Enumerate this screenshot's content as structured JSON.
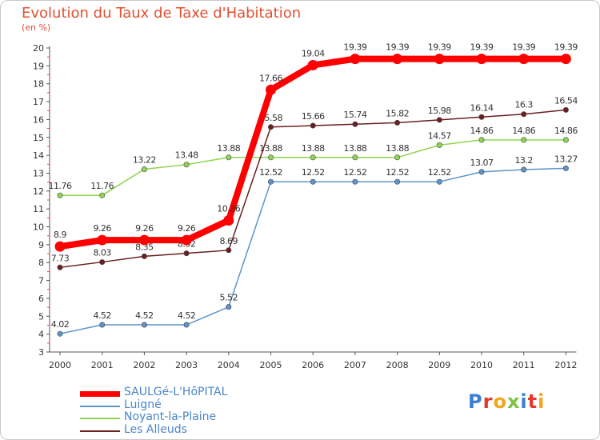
{
  "chart_data": {
    "type": "line",
    "title": "Evolution du Taux de Taxe d'Habitation",
    "ylabel": "(en %)",
    "xlabel": "",
    "x": [
      "2000",
      "2001",
      "2002",
      "2003",
      "2004",
      "2005",
      "2006",
      "2007",
      "2008",
      "2009",
      "2010",
      "2011",
      "2012"
    ],
    "ylim": [
      3,
      20
    ],
    "yticks": [
      3,
      4,
      5,
      6,
      7,
      8,
      9,
      10,
      11,
      12,
      13,
      14,
      15,
      16,
      17,
      18,
      19,
      20
    ],
    "grid": false,
    "legend_position": "bottom-left",
    "series": [
      {
        "name": "SAULGé-L'HôPITAL",
        "color": "#ff0000",
        "values": [
          8.9,
          9.26,
          9.26,
          9.26,
          10.36,
          17.66,
          19.04,
          19.39,
          19.39,
          19.39,
          19.39,
          19.39,
          19.39
        ],
        "labels": [
          "8.9",
          "9.26",
          "9.26",
          "9.26",
          "10.36",
          "17.66",
          "19.04",
          "19.39",
          "19.39",
          "19.39",
          "19.39",
          "19.39",
          "19.39"
        ]
      },
      {
        "name": "Luigné",
        "color": "#5d94c9",
        "values": [
          4.02,
          4.52,
          4.52,
          4.52,
          5.52,
          12.52,
          12.52,
          12.52,
          12.52,
          12.52,
          13.07,
          13.2,
          13.27
        ],
        "labels": [
          "4.02",
          "4.52",
          "4.52",
          "4.52",
          "5.52",
          "12.52",
          "12.52",
          "12.52",
          "12.52",
          "12.52",
          "13.07",
          "13.2",
          "13.27"
        ]
      },
      {
        "name": "Noyant-la-Plaine",
        "color": "#8ed651",
        "values": [
          11.76,
          11.76,
          13.22,
          13.48,
          13.88,
          13.88,
          13.88,
          13.88,
          13.88,
          14.57,
          14.86,
          14.86,
          14.86
        ],
        "labels": [
          "11.76",
          "11.76",
          "13.22",
          "13.48",
          "13.88",
          "13.88",
          "13.88",
          "13.88",
          "13.88",
          "14.57",
          "14.86",
          "14.86",
          "14.86"
        ]
      },
      {
        "name": "Les Alleuds",
        "color": "#6b1f1f",
        "values": [
          7.73,
          8.03,
          8.35,
          8.52,
          8.69,
          15.58,
          15.66,
          15.74,
          15.82,
          15.98,
          16.14,
          16.3,
          16.54
        ],
        "labels": [
          "7.73",
          "8.03",
          "8.35",
          "8.52",
          "8.69",
          "15.58",
          "15.66",
          "15.74",
          "15.82",
          "15.98",
          "16.14",
          "16.3",
          "16.54"
        ]
      }
    ]
  },
  "brand": {
    "text": "Proxiti",
    "letter_colors": [
      "#3a7fd5",
      "#e6392e",
      "#f2a51a",
      "#7cc242",
      "#3a7fd5",
      "#e6392e",
      "#f2a51a"
    ]
  }
}
